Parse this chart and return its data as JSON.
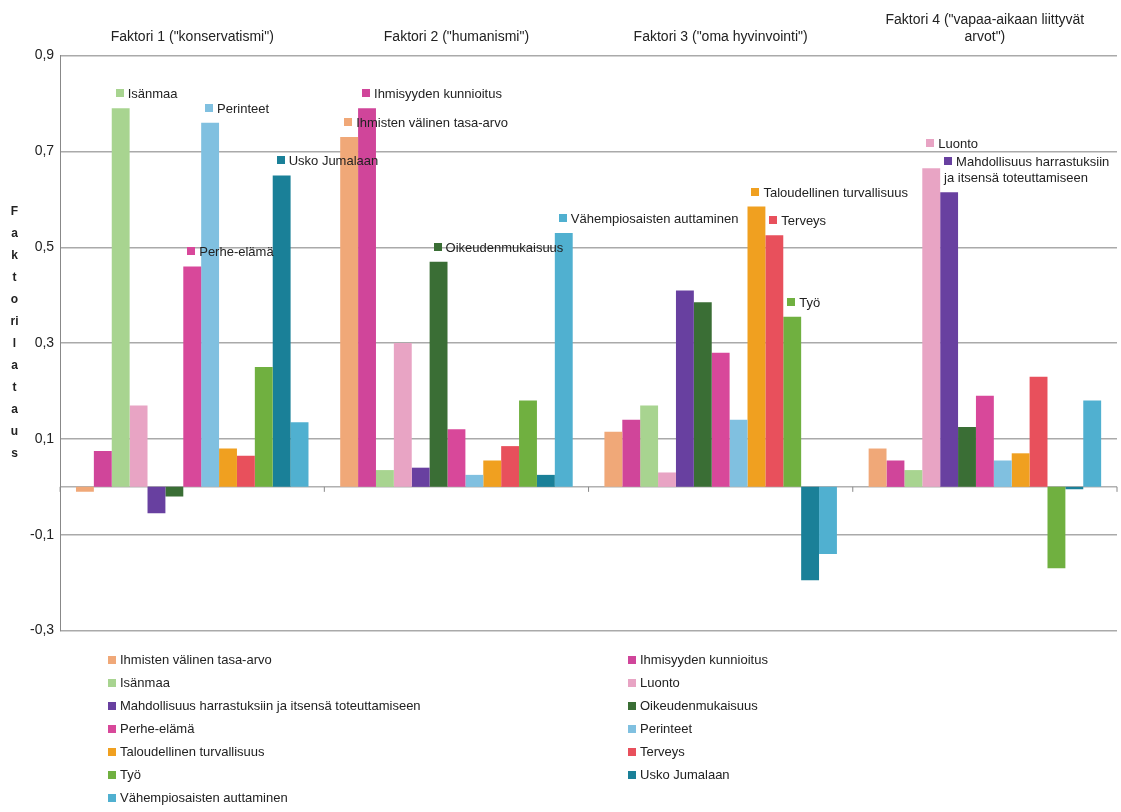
{
  "chart_data": {
    "type": "bar",
    "ylabel": "Faktorilataus",
    "categories": [
      "Faktori 1 (\"konservatismi\")",
      "Faktori 2 (\"humanismi\")",
      "Faktori 3 (\"oma hyvinvointi\")",
      "Faktori 4 (\"vapaa-aikaan liittyvät arvot\")"
    ],
    "series": [
      {
        "name": "Ihmisten välinen tasa-arvo",
        "color": "#f0a878",
        "values": [
          -0.01,
          0.73,
          0.115,
          0.08
        ]
      },
      {
        "name": "Ihmisyyden kunnioitus",
        "color": "#d0459a",
        "values": [
          0.075,
          0.79,
          0.14,
          0.055
        ]
      },
      {
        "name": "Isänmaa",
        "color": "#a8d490",
        "values": [
          0.79,
          0.035,
          0.17,
          0.035
        ]
      },
      {
        "name": "Luonto",
        "color": "#e8a4c4",
        "values": [
          0.17,
          0.3,
          0.03,
          0.665
        ]
      },
      {
        "name": "Mahdollisuus harrastuksiin ja itsensä toteuttamiseen",
        "color": "#6840a0",
        "values": [
          -0.055,
          0.04,
          0.41,
          0.615
        ]
      },
      {
        "name": "Oikeudenmukaisuus",
        "color": "#3a6e35",
        "values": [
          -0.02,
          0.47,
          0.385,
          0.125
        ]
      },
      {
        "name": "Perhe-elämä",
        "color": "#d8489a",
        "values": [
          0.46,
          0.12,
          0.28,
          0.19
        ]
      },
      {
        "name": "Perinteet",
        "color": "#80c0e0",
        "values": [
          0.76,
          0.025,
          0.14,
          0.055
        ]
      },
      {
        "name": "Taloudellinen turvallisuus",
        "color": "#f0a020",
        "values": [
          0.08,
          0.055,
          0.585,
          0.07
        ]
      },
      {
        "name": "Terveys",
        "color": "#e8505c",
        "values": [
          0.065,
          0.085,
          0.525,
          0.23
        ]
      },
      {
        "name": "Työ",
        "color": "#70b040",
        "values": [
          0.25,
          0.18,
          0.355,
          -0.17
        ]
      },
      {
        "name": "Usko Jumalaan",
        "color": "#1a8098",
        "values": [
          0.65,
          0.025,
          -0.195,
          -0.005
        ]
      },
      {
        "name": "Vähempiosaisten auttaminen",
        "color": "#50b0d0",
        "values": [
          0.135,
          0.53,
          -0.14,
          0.18
        ]
      }
    ],
    "ylim": [
      -0.3,
      0.9
    ],
    "yticks": [
      {
        "value": -0.3,
        "label": "-0,3"
      },
      {
        "value": -0.1,
        "label": "-0,1"
      },
      {
        "value": 0.1,
        "label": "0,1"
      },
      {
        "value": 0.3,
        "label": "0,3"
      },
      {
        "value": 0.5,
        "label": "0,5"
      },
      {
        "value": 0.7,
        "label": "0,7"
      },
      {
        "value": 0.9,
        "label": "0,9"
      }
    ],
    "grid": "y",
    "legend": "bottom",
    "annotations": [
      "Isänmaa",
      "Perinteet",
      "Usko Jumalaan",
      "Perhe-elämä",
      "Ihmisyyden kunnioitus",
      "Ihmisten välinen tasa-arvo",
      "Oikeudenmukaisuus",
      "Vähempiosaisten auttaminen",
      "Taloudellinen turvallisuus",
      "Terveys",
      "Työ",
      "Mahdollisuus harrastuksiin ja itsensä toteuttamiseen",
      "Luonto"
    ]
  }
}
